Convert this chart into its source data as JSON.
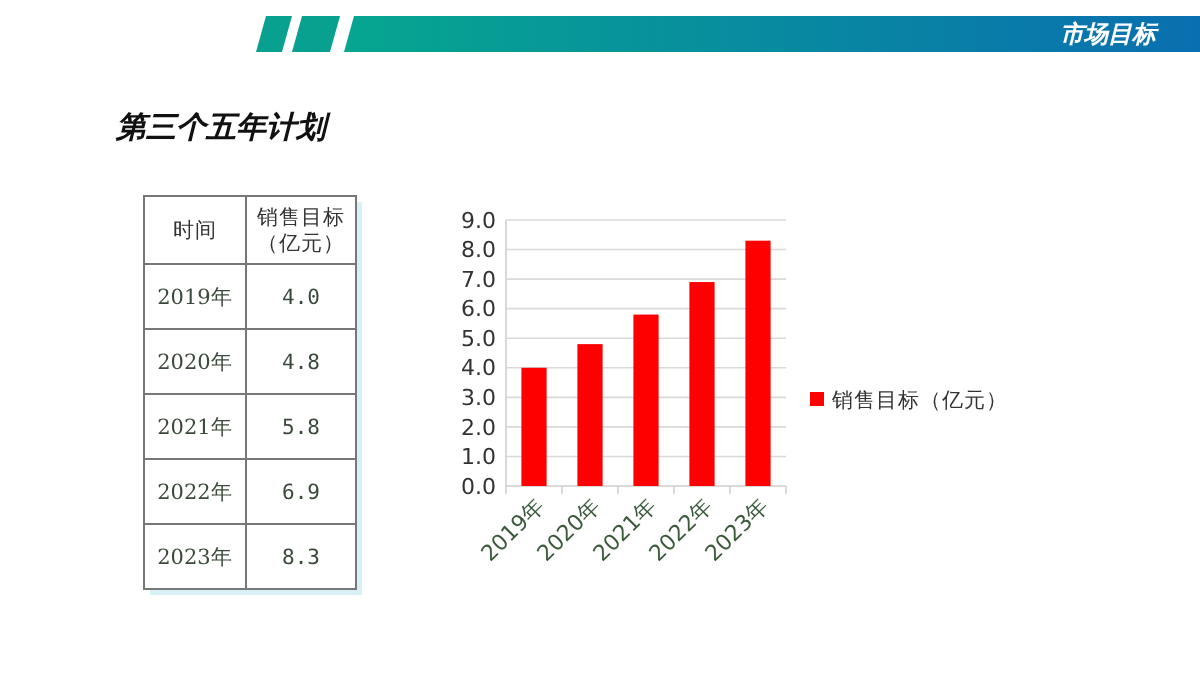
{
  "chart_data": {
    "type": "bar",
    "title": "第三个五年计划",
    "annotations": [
      "市场目标",
      "时间",
      "4.0",
      "4.8",
      "5.8",
      "6.9",
      "8.3"
    ],
    "categories": [
      "2019年",
      "2020年",
      "2021年",
      "2022年",
      "2023年"
    ],
    "series": [
      {
        "name": "销售目标（亿元）",
        "color": "#ff0000",
        "values": [
          4.0,
          4.8,
          5.8,
          6.9,
          8.3
        ]
      }
    ],
    "ylim": [
      0,
      9
    ],
    "yticks": [
      {
        "value": 0,
        "label": "0.0"
      },
      {
        "value": 1,
        "label": "1.0"
      },
      {
        "value": 2,
        "label": "2.0"
      },
      {
        "value": 3,
        "label": "3.0"
      },
      {
        "value": 4,
        "label": "4.0"
      },
      {
        "value": 5,
        "label": "5.0"
      },
      {
        "value": 6,
        "label": "6.0"
      },
      {
        "value": 7,
        "label": "7.0"
      },
      {
        "value": 8,
        "label": "8.0"
      },
      {
        "value": 9,
        "label": "9.0"
      }
    ],
    "grid": "y",
    "legend": "right"
  }
}
